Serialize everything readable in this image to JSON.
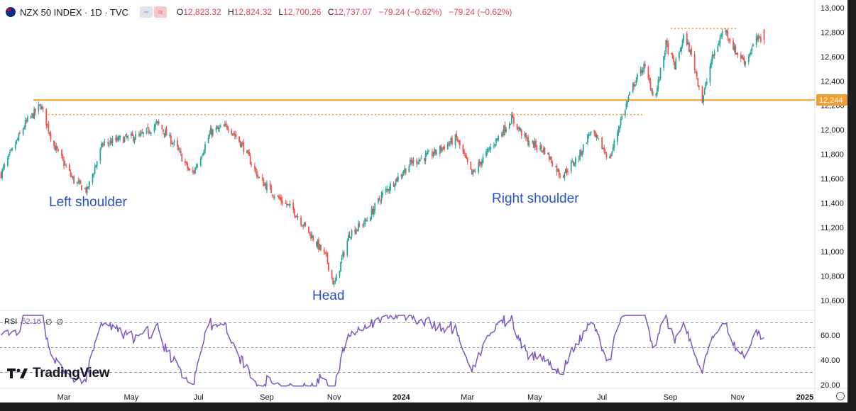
{
  "header": {
    "symbol_title": "NZX 50 INDEX · 1D · TVC",
    "pill_icons": [
      "minus-icon",
      "wave-icon"
    ],
    "ohlc": {
      "o_label": "O",
      "o_value": "12,823.32",
      "h_label": "H",
      "h_value": "12,824.32",
      "l_label": "L",
      "l_value": "12,700.26",
      "c_label": "C",
      "c_value": "12,737.07",
      "change": "−79.24 (−0.62%)",
      "change2": "−79.24 (−0.62%)"
    }
  },
  "rsi_header": {
    "label": "RSI",
    "value": "52.16",
    "extra1": "∅",
    "extra2": "∅"
  },
  "brand": {
    "name": "TradingView"
  },
  "annotations": {
    "left_shoulder": "Left shoulder",
    "head": "Head",
    "right_shoulder": "Right shoulder"
  },
  "colors": {
    "up": "#26a69a",
    "down": "#ef5350",
    "neckline": "#f0a030",
    "rsi": "#7e57c2",
    "annotation": "#2b4fc7"
  },
  "chart_data": [
    {
      "type": "candlestick",
      "series_name": "NZX 50 INDEX",
      "x_ticks": [
        "Mar",
        "May",
        "Jul",
        "Sep",
        "Nov",
        "2024",
        "Mar",
        "May",
        "Jul",
        "Sep",
        "Nov",
        "2025"
      ],
      "y_ticks": [
        "13,000",
        "12,800",
        "12,600",
        "12,400",
        "12,200",
        "12,000",
        "11,800",
        "11,600",
        "11,400",
        "11,200",
        "11,000",
        "10,800",
        "10,600"
      ],
      "ylim": [
        10550,
        13000
      ],
      "x_range": [
        "2023-01-02",
        "2025-01-10"
      ],
      "neckline": {
        "value": 12244,
        "label": "12,244"
      },
      "resistance_dotted_upper": 12830,
      "resistance_dotted_lower": 12125,
      "anchors": [
        [
          "2023-01-03",
          11640
        ],
        [
          "2023-01-25",
          12050
        ],
        [
          "2023-02-08",
          12200
        ],
        [
          "2023-02-20",
          11870
        ],
        [
          "2023-03-10",
          11580
        ],
        [
          "2023-03-22",
          11500
        ],
        [
          "2023-04-05",
          11880
        ],
        [
          "2023-04-20",
          11920
        ],
        [
          "2023-05-10",
          11950
        ],
        [
          "2023-05-25",
          12050
        ],
        [
          "2023-06-10",
          11870
        ],
        [
          "2023-06-25",
          11620
        ],
        [
          "2023-07-12",
          11980
        ],
        [
          "2023-07-28",
          12030
        ],
        [
          "2023-08-10",
          11870
        ],
        [
          "2023-08-25",
          11600
        ],
        [
          "2023-09-10",
          11450
        ],
        [
          "2023-09-25",
          11340
        ],
        [
          "2023-10-10",
          11150
        ],
        [
          "2023-10-25",
          10950
        ],
        [
          "2023-11-01",
          10720
        ],
        [
          "2023-11-15",
          11150
        ],
        [
          "2023-11-30",
          11250
        ],
        [
          "2023-12-15",
          11470
        ],
        [
          "2024-01-10",
          11730
        ],
        [
          "2024-01-31",
          11810
        ],
        [
          "2024-02-20",
          11930
        ],
        [
          "2024-03-05",
          11630
        ],
        [
          "2024-03-20",
          11830
        ],
        [
          "2024-04-10",
          12090
        ],
        [
          "2024-04-25",
          11900
        ],
        [
          "2024-05-10",
          11830
        ],
        [
          "2024-05-25",
          11620
        ],
        [
          "2024-06-10",
          11780
        ],
        [
          "2024-06-20",
          11980
        ],
        [
          "2024-06-28",
          11900
        ],
        [
          "2024-07-08",
          11760
        ],
        [
          "2024-07-18",
          12080
        ],
        [
          "2024-07-30",
          12380
        ],
        [
          "2024-08-08",
          12520
        ],
        [
          "2024-08-18",
          12250
        ],
        [
          "2024-08-28",
          12700
        ],
        [
          "2024-09-05",
          12520
        ],
        [
          "2024-09-14",
          12780
        ],
        [
          "2024-09-22",
          12550
        ],
        [
          "2024-09-30",
          12240
        ],
        [
          "2024-10-08",
          12560
        ],
        [
          "2024-10-20",
          12840
        ],
        [
          "2024-10-30",
          12640
        ],
        [
          "2024-11-08",
          12560
        ],
        [
          "2024-11-18",
          12740
        ],
        [
          "2024-11-25",
          12737
        ]
      ]
    },
    {
      "type": "line",
      "series_name": "RSI",
      "y_ticks": [
        "60.00",
        "40.00",
        "20.00"
      ],
      "ylim": [
        18,
        77
      ],
      "bands": [
        70,
        50,
        30
      ],
      "last_value": 52.16
    }
  ]
}
